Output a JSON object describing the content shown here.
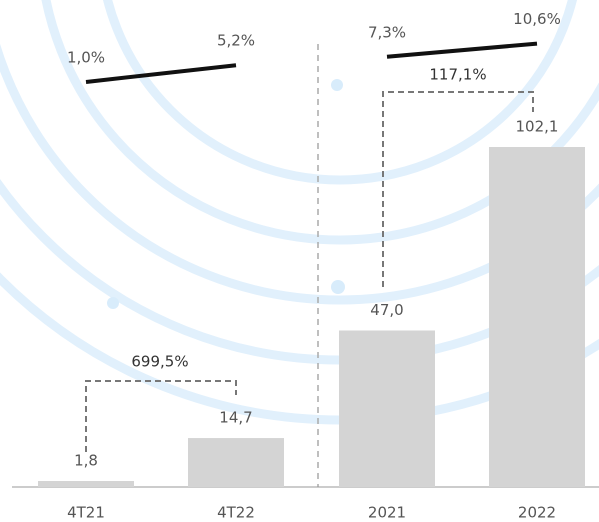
{
  "chart_data": {
    "type": "bar",
    "categories": [
      "4T21",
      "4T22",
      "2021",
      "2022"
    ],
    "series": [
      {
        "type": "bar",
        "color": "#d4d4d4",
        "values": [
          1.8,
          14.7,
          47.0,
          102.1
        ],
        "value_labels": [
          "1,8",
          "14,7",
          "47,0",
          "102,1"
        ]
      },
      {
        "type": "line",
        "color": "#111111",
        "values": [
          1.0,
          5.2,
          7.3,
          10.6
        ],
        "value_labels": [
          "1,0%",
          "5,2%",
          "7,3%",
          "10,6%"
        ]
      }
    ],
    "annotations": [
      "699,5%",
      "117,1%"
    ]
  }
}
